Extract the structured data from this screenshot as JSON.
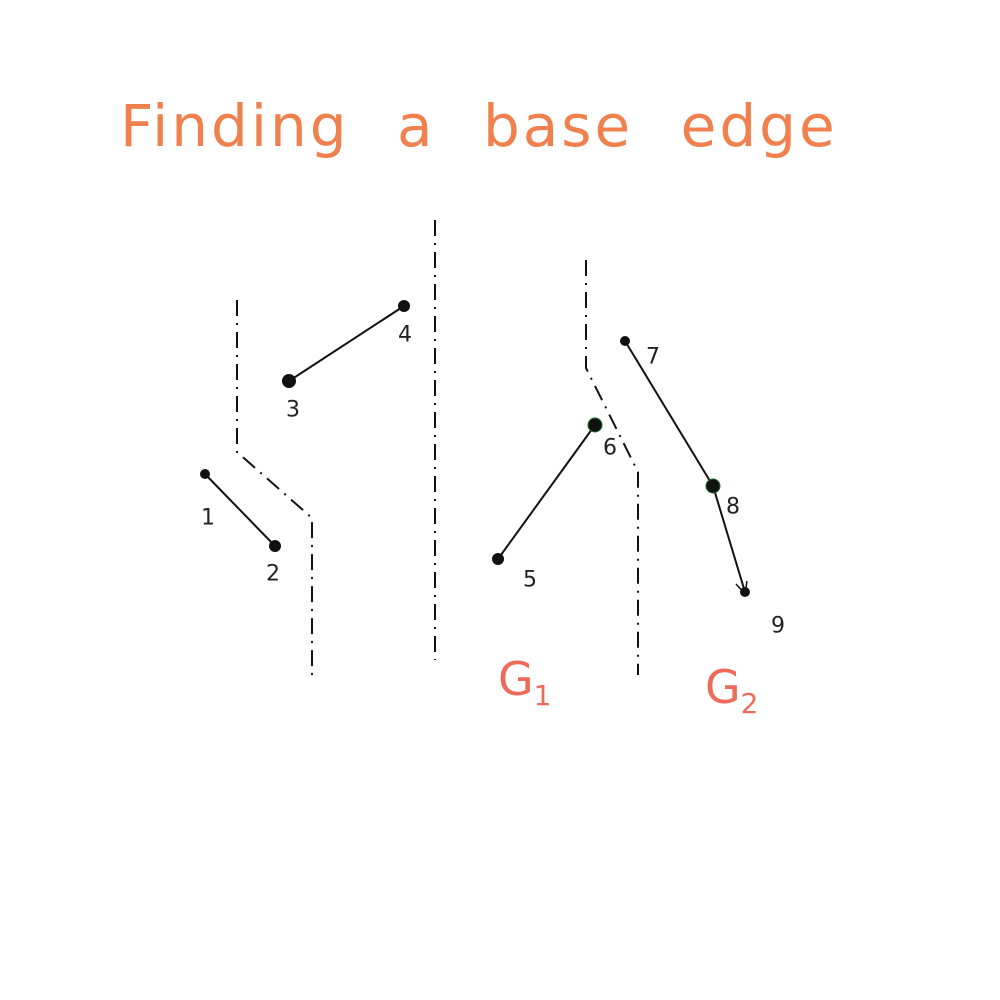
{
  "title": "Finding a base edge",
  "colors": {
    "title": "#f0814e",
    "group": "#ee6a5a",
    "ink": "#111111"
  },
  "points": [
    {
      "id": "p1",
      "label": "1"
    },
    {
      "id": "p2",
      "label": "2"
    },
    {
      "id": "p3",
      "label": "3"
    },
    {
      "id": "p4",
      "label": "4"
    },
    {
      "id": "p5",
      "label": "5"
    },
    {
      "id": "p6",
      "label": "6"
    },
    {
      "id": "p7",
      "label": "7"
    },
    {
      "id": "p8",
      "label": "8"
    },
    {
      "id": "p9",
      "label": "9"
    }
  ],
  "edges": [
    {
      "from": "1",
      "to": "2"
    },
    {
      "from": "3",
      "to": "4"
    },
    {
      "from": "5",
      "to": "6"
    },
    {
      "from": "7",
      "to": "8"
    },
    {
      "from": "8",
      "to": "9"
    }
  ],
  "groups": [
    {
      "letter": "G",
      "sub": "1"
    },
    {
      "letter": "G",
      "sub": "2"
    }
  ]
}
